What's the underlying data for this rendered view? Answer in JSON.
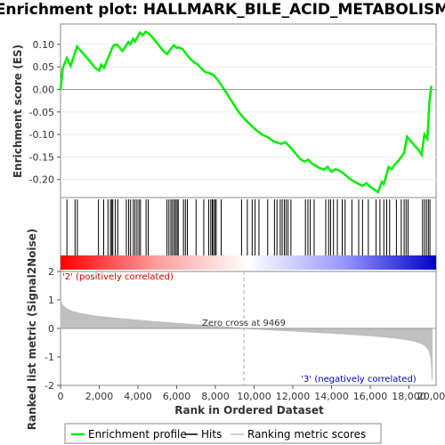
{
  "chart_data": {
    "type": "line",
    "title": "Enrichment plot: HALLMARK_BILE_ACID_METABOLISM",
    "top_panel": {
      "ylabel": "Enrichment score (ES)",
      "yticks": [
        0.1,
        0.05,
        0.0,
        -0.05,
        -0.1,
        -0.15,
        -0.2
      ],
      "ytick_labels": [
        "0.10",
        "0.05",
        "0.00",
        "-0.05",
        "-0.10",
        "-0.15",
        "-0.20"
      ],
      "ylim": [
        -0.24,
        0.145
      ],
      "series": [
        {
          "name": "Enrichment profile",
          "color": "#00ee00",
          "x": [
            0,
            120,
            330,
            520,
            700,
            850,
            1000,
            1200,
            1400,
            1600,
            1800,
            2000,
            2100,
            2250,
            2400,
            2500,
            2650,
            2750,
            2900,
            3050,
            3200,
            3350,
            3500,
            3600,
            3750,
            3850,
            4000,
            4100,
            4250,
            4400,
            4550,
            4700,
            4850,
            5000,
            5150,
            5300,
            5500,
            5700,
            5850,
            6000,
            6100,
            6300,
            6500,
            6700,
            6900,
            7100,
            7300,
            7500,
            7700,
            7900,
            8100,
            8300,
            8600,
            8900,
            9200,
            9500,
            9800,
            10100,
            10400,
            10700,
            11000,
            11200,
            11400,
            11600,
            11800,
            12000,
            12200,
            12400,
            12600,
            12800,
            13000,
            13200,
            13400,
            13600,
            13800,
            14000,
            14200,
            14400,
            14600,
            14800,
            15000,
            15200,
            15400,
            15600,
            15800,
            16000,
            16200,
            16400,
            16600,
            16700,
            16800,
            16950,
            17100,
            17300,
            17450,
            17600,
            17750,
            17900,
            18100,
            18300,
            18500,
            18650,
            18800,
            18950,
            19050,
            19150
          ],
          "y": [
            0.0,
            0.048,
            0.07,
            0.052,
            0.075,
            0.095,
            0.088,
            0.078,
            0.068,
            0.058,
            0.047,
            0.042,
            0.055,
            0.048,
            0.064,
            0.074,
            0.09,
            0.098,
            0.1,
            0.093,
            0.085,
            0.095,
            0.105,
            0.1,
            0.112,
            0.106,
            0.118,
            0.126,
            0.12,
            0.128,
            0.124,
            0.118,
            0.11,
            0.102,
            0.094,
            0.086,
            0.078,
            0.09,
            0.098,
            0.092,
            0.093,
            0.09,
            0.078,
            0.068,
            0.06,
            0.055,
            0.045,
            0.038,
            0.036,
            0.032,
            0.022,
            0.01,
            -0.01,
            -0.03,
            -0.05,
            -0.065,
            -0.078,
            -0.09,
            -0.1,
            -0.106,
            -0.115,
            -0.118,
            -0.121,
            -0.117,
            -0.125,
            -0.135,
            -0.145,
            -0.155,
            -0.16,
            -0.156,
            -0.165,
            -0.17,
            -0.175,
            -0.178,
            -0.172,
            -0.183,
            -0.177,
            -0.18,
            -0.186,
            -0.193,
            -0.2,
            -0.205,
            -0.21,
            -0.214,
            -0.208,
            -0.216,
            -0.222,
            -0.228,
            -0.205,
            -0.21,
            -0.195,
            -0.172,
            -0.177,
            -0.165,
            -0.158,
            -0.15,
            -0.14,
            -0.105,
            -0.115,
            -0.125,
            -0.135,
            -0.145,
            -0.1,
            -0.11,
            -0.03,
            0.008
          ]
        }
      ]
    },
    "hits_panel": {
      "name": "Hits",
      "color": "#000000",
      "positions": [
        330,
        750,
        870,
        1960,
        2230,
        2450,
        2580,
        2650,
        2700,
        2830,
        2960,
        3400,
        3520,
        3620,
        3760,
        3850,
        3950,
        4050,
        4130,
        4420,
        4530,
        5500,
        5600,
        5700,
        5780,
        5870,
        5940,
        6020,
        6080,
        6350,
        6450,
        6550,
        7000,
        7400,
        7650,
        7760,
        7840,
        7900,
        7980,
        8040,
        8300,
        9350,
        9650,
        9900,
        10050,
        10250,
        10700,
        11050,
        11180,
        11350,
        11450,
        11560,
        11650,
        11750,
        11900,
        12650,
        12780,
        12900,
        13100,
        13700,
        13850,
        13950,
        14100,
        14300,
        14550,
        14700,
        15050,
        15400,
        15600,
        15900,
        16300,
        16500,
        16700,
        16850,
        17000,
        17350,
        17600,
        17750,
        17850,
        17950,
        18700,
        18800,
        18900,
        19000,
        19080
      ]
    },
    "ranked_panel": {
      "ylabel": "Ranked list metric (Signal2Noise)",
      "xlabel": "Rank in Ordered Dataset",
      "name": "Ranking metric scores",
      "color": "#c0c0c0",
      "yticks": [
        2,
        1,
        0,
        -1,
        -2
      ],
      "ytick_labels": [
        "2",
        "1",
        "0",
        "-1",
        "-2"
      ],
      "ylim": [
        -2,
        2
      ],
      "x": [
        0,
        100,
        300,
        600,
        1000,
        1500,
        2000,
        3000,
        4000,
        5000,
        6000,
        7000,
        8000,
        9000,
        9469,
        10000,
        11000,
        12000,
        13000,
        14000,
        15000,
        16000,
        17000,
        17500,
        18000,
        18400,
        18700,
        18900,
        19050,
        19150,
        19200
      ],
      "y": [
        1.0,
        0.82,
        0.7,
        0.6,
        0.53,
        0.47,
        0.42,
        0.35,
        0.29,
        0.23,
        0.18,
        0.13,
        0.08,
        0.03,
        0.0,
        -0.02,
        -0.06,
        -0.09,
        -0.13,
        -0.17,
        -0.21,
        -0.26,
        -0.32,
        -0.36,
        -0.41,
        -0.47,
        -0.55,
        -0.65,
        -0.8,
        -1.1,
        -1.8
      ],
      "zero_cross": 9469,
      "zero_cross_label": "Zero cross at 9469",
      "pos_label": "'2' (positively correlated)",
      "neg_label": "'3' (negatively correlated)",
      "pos_label_color": "#cc0000",
      "neg_label_color": "#0000cc"
    },
    "xlim": [
      0,
      19400
    ],
    "xticks": [
      0,
      2000,
      4000,
      6000,
      8000,
      10000,
      12000,
      14000,
      16000,
      18000,
      20000
    ],
    "xtick_labels": [
      "0",
      "2,000",
      "4,000",
      "6,000",
      "8,000",
      "10,000",
      "12,000",
      "14,000",
      "16,000",
      "18,000",
      "20,000"
    ],
    "colorbar": {
      "stops": [
        "#ff0000",
        "#ff9999",
        "#ffffff",
        "#9999ff",
        "#0000cc"
      ]
    },
    "legend": {
      "placement": "bottom",
      "items": [
        {
          "label": "Enrichment profile",
          "color": "#00ee00",
          "style": "line"
        },
        {
          "label": "Hits",
          "color": "#000000",
          "style": "line"
        },
        {
          "label": "Ranking metric scores",
          "color": "#c0c0c0",
          "style": "line"
        }
      ]
    }
  }
}
